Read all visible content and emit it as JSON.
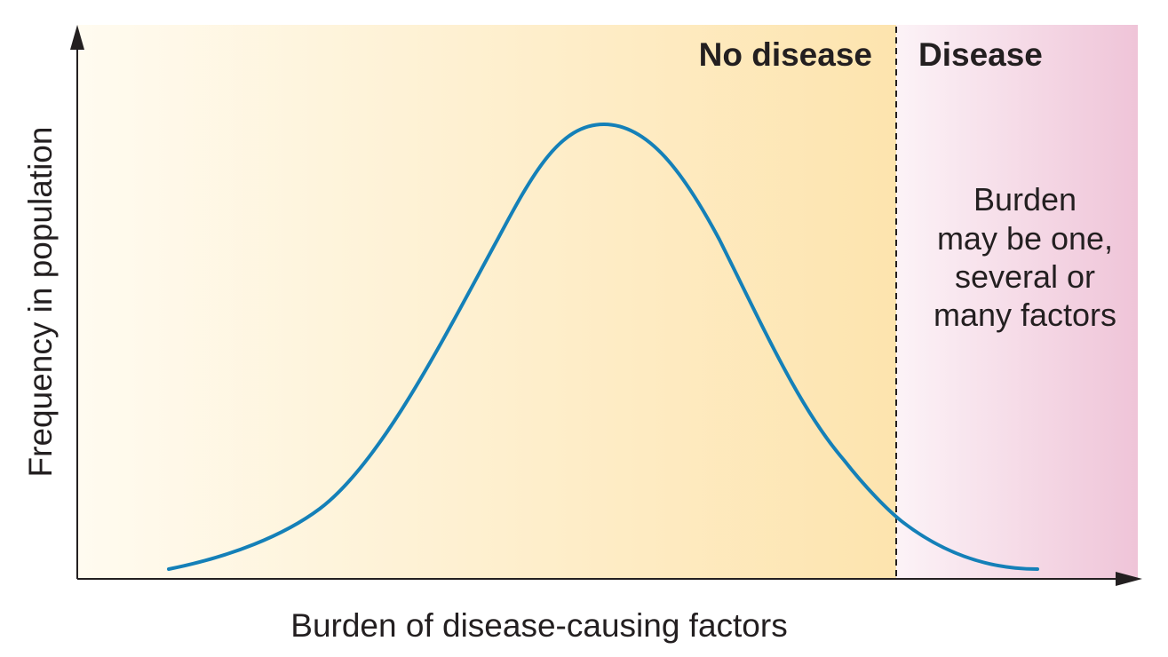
{
  "figure": {
    "axes": {
      "x_label": "Burden of disease-causing factors",
      "y_label": "Frequency in population"
    },
    "regions": {
      "left_label": "No disease",
      "right_label": "Disease"
    },
    "note_lines": [
      "Burden",
      "may be one,",
      "several or",
      "many factors"
    ],
    "colors": {
      "no_disease_start": "#fffbf0",
      "no_disease_end": "#fde4ae",
      "disease_start": "#fcf3f7",
      "disease_end": "#efc4d8",
      "curve": "#1480b8",
      "axis": "#231f20",
      "threshold": "#231f20"
    }
  }
}
